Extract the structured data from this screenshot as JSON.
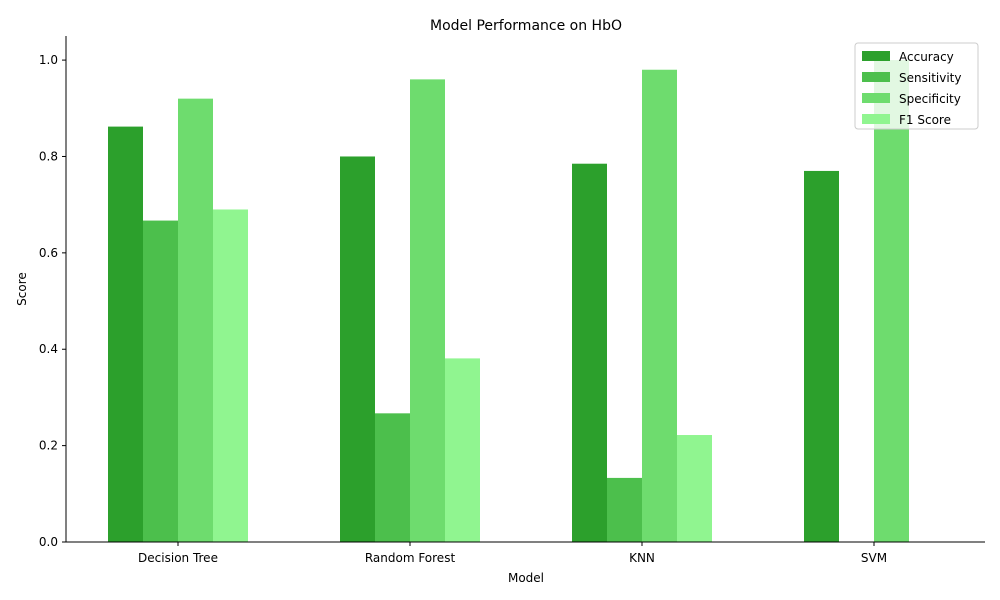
{
  "chart_data": {
    "type": "bar",
    "title": "Model Performance on HbO",
    "xlabel": "Model",
    "ylabel": "Score",
    "ylim": [
      0,
      1.05
    ],
    "yticks": [
      "0.0",
      "0.2",
      "0.4",
      "0.6",
      "0.8",
      "1.0"
    ],
    "grid": false,
    "legend_position": "top-right",
    "categories": [
      "Decision Tree",
      "Random Forest",
      "KNN",
      "SVM"
    ],
    "series": [
      {
        "name": "Accuracy",
        "color": "#2ca02c",
        "values": [
          0.862,
          0.8,
          0.785,
          0.77
        ]
      },
      {
        "name": "Sensitivity",
        "color": "#4cbf4c",
        "values": [
          0.667,
          0.267,
          0.133,
          0.0
        ]
      },
      {
        "name": "Specificity",
        "color": "#6edc6e",
        "values": [
          0.92,
          0.96,
          0.98,
          1.0
        ]
      },
      {
        "name": "F1 Score",
        "color": "#90f590",
        "values": [
          0.69,
          0.381,
          0.222,
          0.0
        ]
      }
    ]
  }
}
